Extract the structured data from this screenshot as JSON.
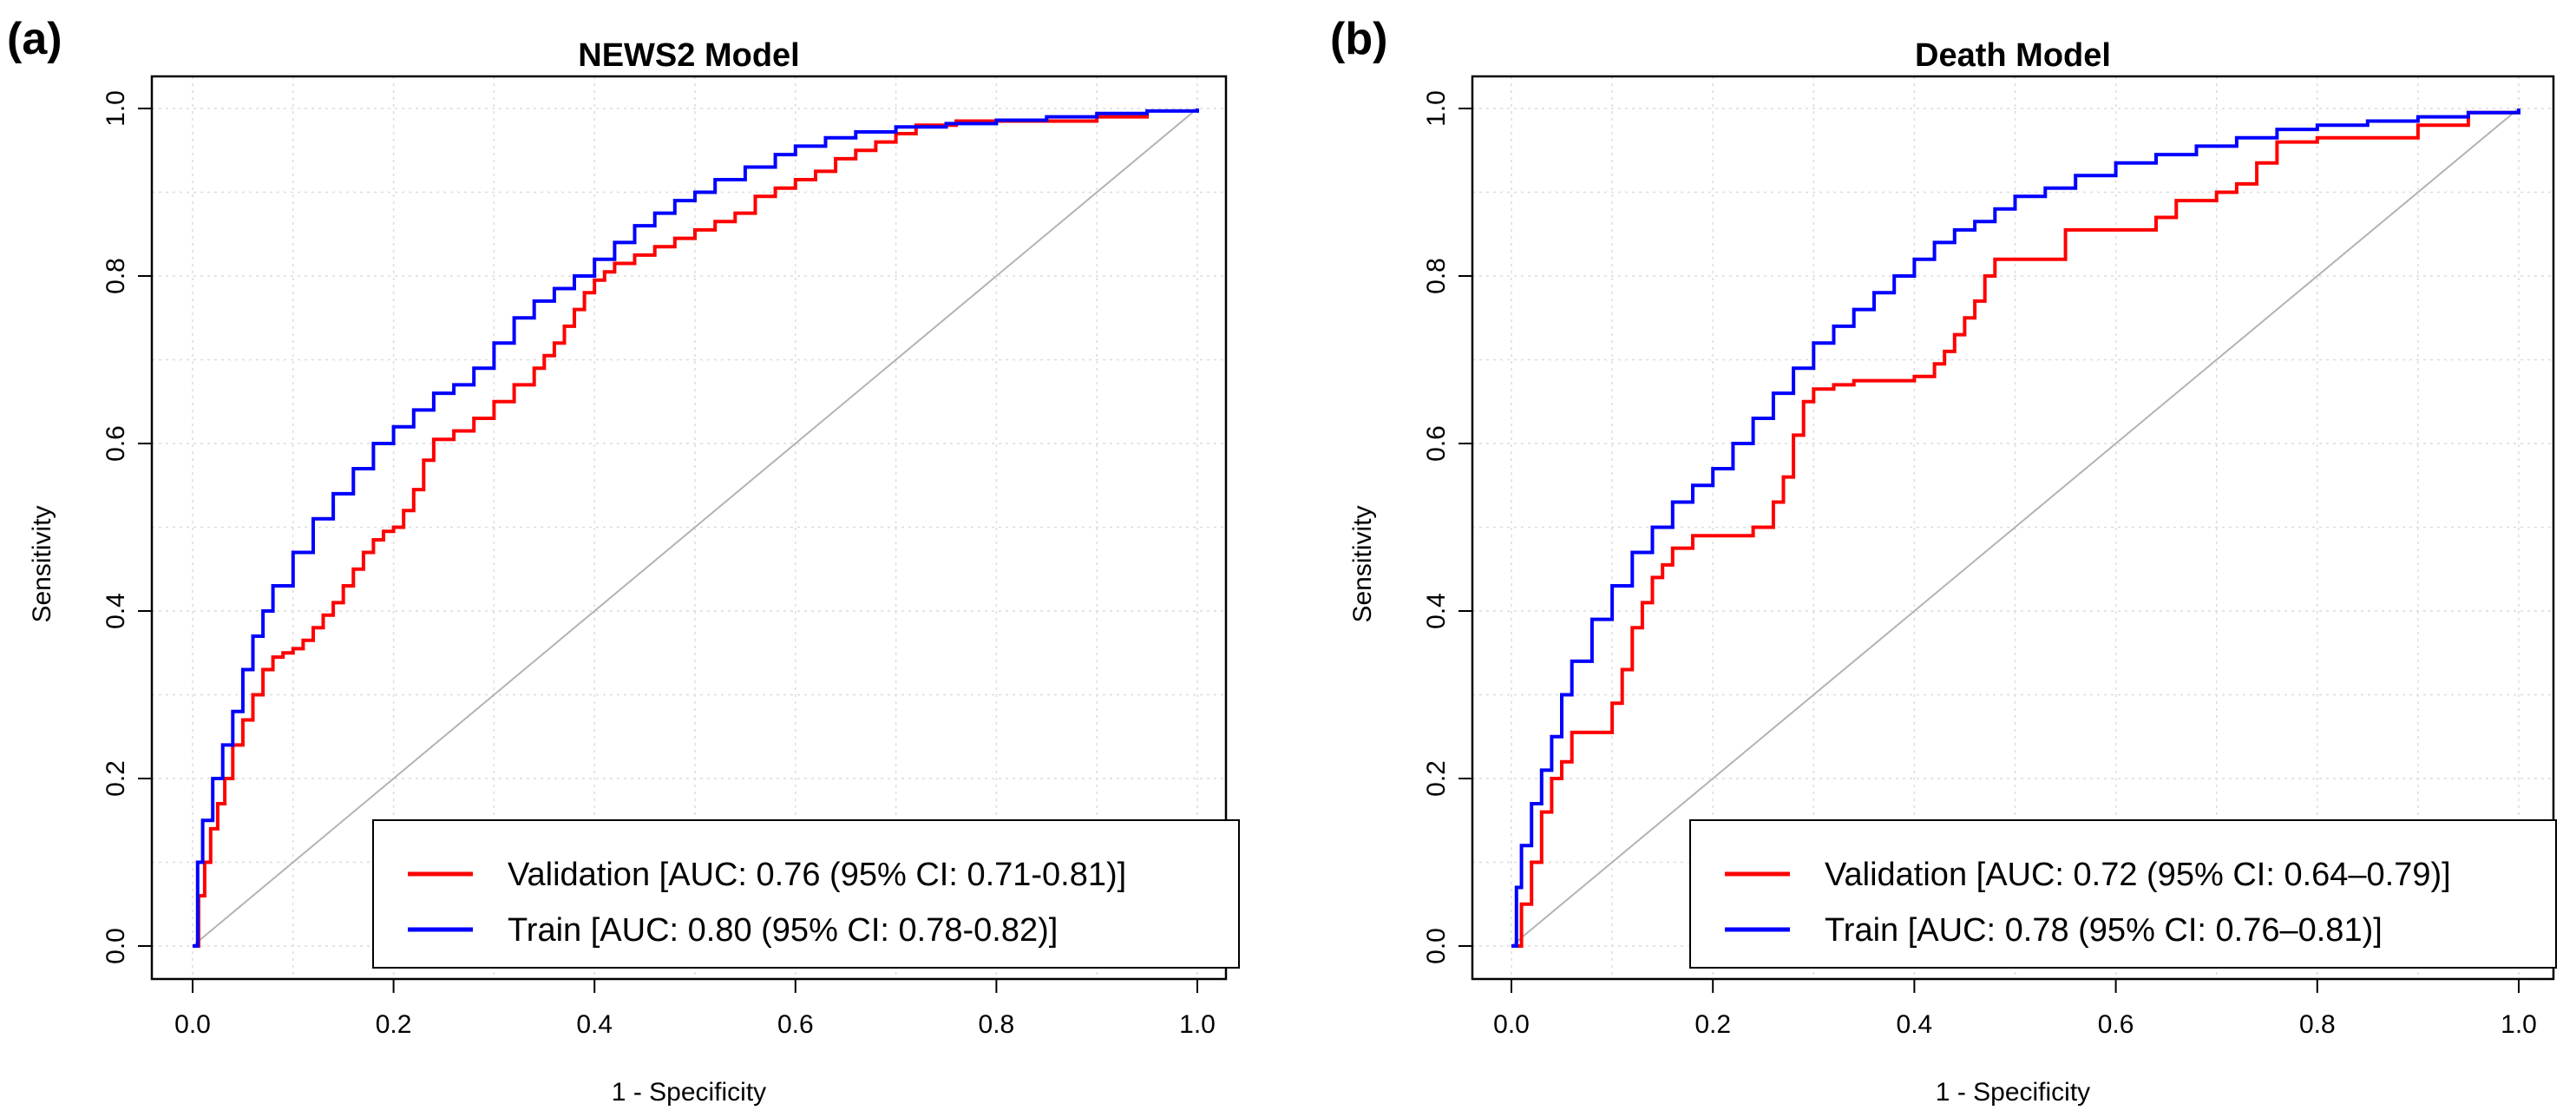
{
  "chart_data": [
    {
      "panel": "(a)",
      "type": "line",
      "title": "NEWS2 Model",
      "xlabel": "1 - Specificity",
      "ylabel": "Sensitivity",
      "xlim": [
        0,
        1
      ],
      "ylim": [
        0,
        1
      ],
      "xticks": [
        "0.0",
        "0.2",
        "0.4",
        "0.6",
        "0.8",
        "1.0"
      ],
      "yticks": [
        "0.0",
        "0.2",
        "0.4",
        "0.6",
        "0.8",
        "1.0"
      ],
      "grid": true,
      "legend_position": "bottom-right",
      "reference_line": {
        "x": [
          0,
          1
        ],
        "y": [
          0,
          1
        ],
        "color": "#b3b3b3"
      },
      "series": [
        {
          "name": "Validation [AUC: 0.76 (95% CI: 0.71-0.81)]",
          "color": "#ff0000",
          "x": [
            0,
            0.006,
            0.012,
            0.018,
            0.025,
            0.032,
            0.04,
            0.05,
            0.06,
            0.07,
            0.08,
            0.09,
            0.1,
            0.11,
            0.12,
            0.13,
            0.14,
            0.15,
            0.16,
            0.17,
            0.18,
            0.19,
            0.2,
            0.21,
            0.22,
            0.23,
            0.24,
            0.26,
            0.28,
            0.3,
            0.32,
            0.34,
            0.35,
            0.36,
            0.37,
            0.38,
            0.39,
            0.4,
            0.41,
            0.42,
            0.44,
            0.46,
            0.48,
            0.5,
            0.52,
            0.54,
            0.56,
            0.58,
            0.6,
            0.62,
            0.64,
            0.66,
            0.68,
            0.7,
            0.72,
            0.76,
            0.8,
            0.85,
            0.9,
            0.95
          ],
          "y": [
            0,
            0.06,
            0.1,
            0.14,
            0.17,
            0.2,
            0.24,
            0.27,
            0.3,
            0.33,
            0.345,
            0.35,
            0.355,
            0.365,
            0.38,
            0.395,
            0.41,
            0.43,
            0.45,
            0.47,
            0.485,
            0.495,
            0.5,
            0.52,
            0.545,
            0.58,
            0.605,
            0.615,
            0.63,
            0.65,
            0.67,
            0.69,
            0.705,
            0.72,
            0.74,
            0.76,
            0.78,
            0.795,
            0.805,
            0.815,
            0.825,
            0.835,
            0.845,
            0.855,
            0.865,
            0.875,
            0.895,
            0.905,
            0.915,
            0.925,
            0.94,
            0.95,
            0.96,
            0.97,
            0.98,
            0.985,
            0.985,
            0.985,
            0.99,
            0.995
          ]
        },
        {
          "name": "Train [AUC: 0.80 (95% CI: 0.78-0.82)]",
          "color": "#0000ff",
          "x": [
            0,
            0.005,
            0.01,
            0.02,
            0.03,
            0.04,
            0.05,
            0.06,
            0.07,
            0.08,
            0.1,
            0.12,
            0.14,
            0.16,
            0.18,
            0.2,
            0.22,
            0.24,
            0.26,
            0.28,
            0.3,
            0.32,
            0.34,
            0.36,
            0.38,
            0.4,
            0.42,
            0.44,
            0.46,
            0.48,
            0.5,
            0.52,
            0.55,
            0.58,
            0.6,
            0.63,
            0.66,
            0.7,
            0.75,
            0.8,
            0.85,
            0.9,
            0.95,
            1.0
          ],
          "y": [
            0,
            0.1,
            0.15,
            0.2,
            0.24,
            0.28,
            0.33,
            0.37,
            0.4,
            0.43,
            0.47,
            0.51,
            0.54,
            0.57,
            0.6,
            0.62,
            0.64,
            0.66,
            0.67,
            0.69,
            0.72,
            0.75,
            0.77,
            0.785,
            0.8,
            0.82,
            0.84,
            0.86,
            0.875,
            0.89,
            0.9,
            0.915,
            0.93,
            0.945,
            0.955,
            0.965,
            0.972,
            0.978,
            0.982,
            0.986,
            0.99,
            0.994,
            0.997,
            1.0
          ]
        }
      ]
    },
    {
      "panel": "(b)",
      "type": "line",
      "title": "Death Model",
      "xlabel": "1 - Specificity",
      "ylabel": "Sensitivity",
      "xlim": [
        0,
        1
      ],
      "ylim": [
        0,
        1
      ],
      "xticks": [
        "0.0",
        "0.2",
        "0.4",
        "0.6",
        "0.8",
        "1.0"
      ],
      "yticks": [
        "0.0",
        "0.2",
        "0.4",
        "0.6",
        "0.8",
        "1.0"
      ],
      "grid": true,
      "legend_position": "bottom-right",
      "reference_line": {
        "x": [
          0,
          1
        ],
        "y": [
          0,
          1
        ],
        "color": "#b3b3b3"
      },
      "series": [
        {
          "name": "Validation [AUC: 0.72 (95% CI: 0.64–0.79)]",
          "color": "#ff0000",
          "x": [
            0,
            0.01,
            0.02,
            0.03,
            0.04,
            0.05,
            0.06,
            0.08,
            0.1,
            0.11,
            0.12,
            0.13,
            0.14,
            0.15,
            0.16,
            0.18,
            0.2,
            0.22,
            0.24,
            0.26,
            0.27,
            0.28,
            0.29,
            0.3,
            0.32,
            0.34,
            0.36,
            0.38,
            0.4,
            0.42,
            0.43,
            0.44,
            0.45,
            0.46,
            0.47,
            0.48,
            0.5,
            0.52,
            0.55,
            0.58,
            0.62,
            0.64,
            0.66,
            0.68,
            0.7,
            0.72,
            0.74,
            0.76,
            0.8,
            0.85,
            0.9,
            0.95,
            1.0
          ],
          "y": [
            0,
            0.05,
            0.1,
            0.16,
            0.2,
            0.22,
            0.255,
            0.255,
            0.29,
            0.33,
            0.38,
            0.41,
            0.44,
            0.455,
            0.475,
            0.49,
            0.49,
            0.49,
            0.5,
            0.53,
            0.56,
            0.61,
            0.65,
            0.665,
            0.67,
            0.675,
            0.675,
            0.675,
            0.68,
            0.695,
            0.71,
            0.73,
            0.75,
            0.77,
            0.8,
            0.82,
            0.82,
            0.82,
            0.855,
            0.855,
            0.855,
            0.87,
            0.89,
            0.89,
            0.9,
            0.91,
            0.935,
            0.96,
            0.965,
            0.965,
            0.98,
            0.995,
            1.0
          ]
        },
        {
          "name": "Train [AUC: 0.78 (95% CI: 0.76–0.81)]",
          "color": "#0000ff",
          "x": [
            0,
            0.005,
            0.01,
            0.02,
            0.03,
            0.04,
            0.05,
            0.06,
            0.08,
            0.1,
            0.12,
            0.14,
            0.16,
            0.18,
            0.2,
            0.22,
            0.24,
            0.26,
            0.28,
            0.3,
            0.32,
            0.34,
            0.36,
            0.38,
            0.4,
            0.42,
            0.44,
            0.46,
            0.48,
            0.5,
            0.53,
            0.56,
            0.6,
            0.64,
            0.68,
            0.72,
            0.76,
            0.8,
            0.85,
            0.9,
            0.95,
            1.0
          ],
          "y": [
            0,
            0.07,
            0.12,
            0.17,
            0.21,
            0.25,
            0.3,
            0.34,
            0.39,
            0.43,
            0.47,
            0.5,
            0.53,
            0.55,
            0.57,
            0.6,
            0.63,
            0.66,
            0.69,
            0.72,
            0.74,
            0.76,
            0.78,
            0.8,
            0.82,
            0.84,
            0.855,
            0.865,
            0.88,
            0.895,
            0.905,
            0.92,
            0.935,
            0.945,
            0.955,
            0.965,
            0.975,
            0.98,
            0.985,
            0.99,
            0.995,
            1.0
          ]
        }
      ]
    }
  ]
}
